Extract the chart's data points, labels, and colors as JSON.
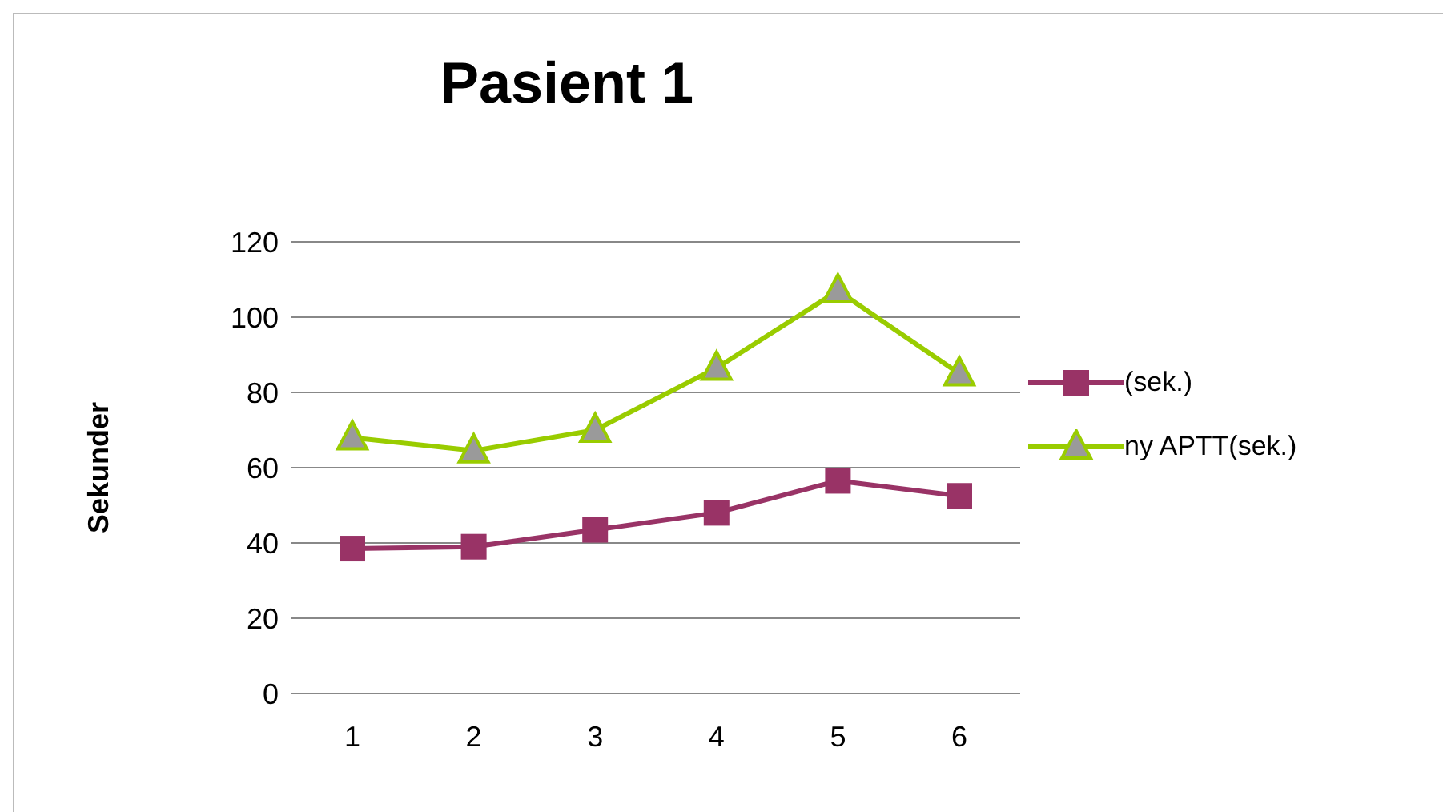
{
  "chart_data": {
    "type": "line",
    "title": "Pasient 1",
    "ylabel": "Sekunder",
    "categories": [
      "1",
      "2",
      "3",
      "4",
      "5",
      "6"
    ],
    "series": [
      {
        "name": "(sek.)",
        "color": "#993366",
        "marker": "square",
        "values": [
          38.5,
          39,
          43.5,
          48,
          56.5,
          52.5
        ]
      },
      {
        "name": "ny APTT(sek.)",
        "color": "#99cc00",
        "marker": "triangle",
        "values": [
          68,
          64.5,
          70,
          86.5,
          107,
          85
        ]
      }
    ],
    "ylim": [
      0,
      120
    ],
    "yticks": [
      0,
      20,
      40,
      60,
      80,
      100,
      120
    ],
    "grid": "y",
    "legend": "right"
  }
}
